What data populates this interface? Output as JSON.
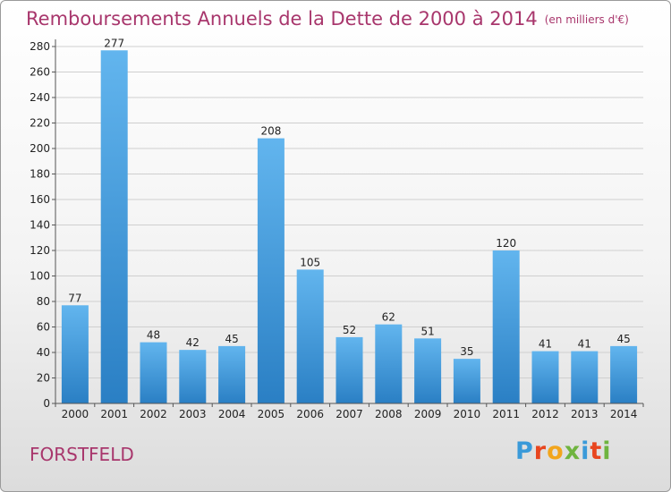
{
  "title": "Remboursements Annuels de la Dette de 2000 à 2014",
  "subtitle": "(en milliers d'€)",
  "commune": "FORSTFELD",
  "logo": {
    "text": "Proxiti",
    "colors": [
      "#3a9ad9",
      "#e8461f",
      "#f2a51c",
      "#6fb43f",
      "#3a9ad9",
      "#e8461f",
      "#6fb43f"
    ]
  },
  "colors": {
    "accent": "#a8366c",
    "bar_light": "#62b5ee",
    "bar_dark": "#2a7fc4"
  },
  "chart_data": {
    "type": "bar",
    "categories": [
      "2000",
      "2001",
      "2002",
      "2003",
      "2004",
      "2005",
      "2006",
      "2007",
      "2008",
      "2009",
      "2010",
      "2011",
      "2012",
      "2013",
      "2014"
    ],
    "values": [
      77,
      277,
      48,
      42,
      45,
      208,
      105,
      52,
      62,
      51,
      35,
      120,
      41,
      41,
      45
    ],
    "data_labels": [
      "77",
      "277",
      "48",
      "42",
      "45",
      "208",
      "105",
      "52",
      "62",
      "51",
      "35",
      "120",
      "41",
      "41",
      "45"
    ],
    "y_ticks": [
      "0",
      "20",
      "40",
      "60",
      "80",
      "100",
      "120",
      "140",
      "160",
      "180",
      "200",
      "220",
      "240",
      "260",
      "280"
    ],
    "ylim": [
      0,
      280
    ],
    "grid": true,
    "legend": "none"
  }
}
